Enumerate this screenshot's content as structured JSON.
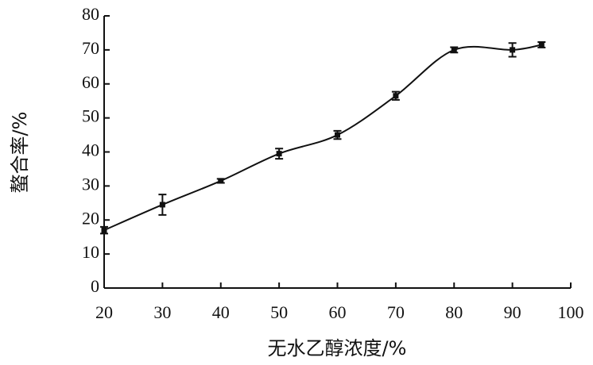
{
  "chart_data": {
    "type": "line",
    "x_label": "无水乙醇浓度/%",
    "y_label": "螯合率/%",
    "x": [
      20,
      30,
      40,
      50,
      60,
      70,
      80,
      90,
      95
    ],
    "series": [
      {
        "values": [
          17,
          24.5,
          31.5,
          39.5,
          45,
          56.5,
          70,
          70,
          71.5
        ],
        "errors": [
          1,
          3,
          0.6,
          1.5,
          1.2,
          1.2,
          0.8,
          2,
          0.8
        ],
        "color": "#111111"
      }
    ],
    "xlim": [
      20,
      100
    ],
    "xticks": [
      20,
      30,
      40,
      50,
      60,
      70,
      80,
      90,
      100
    ],
    "ylim": [
      0,
      80
    ],
    "yticks": [
      0,
      10,
      20,
      30,
      40,
      50,
      60,
      70,
      80
    ]
  }
}
